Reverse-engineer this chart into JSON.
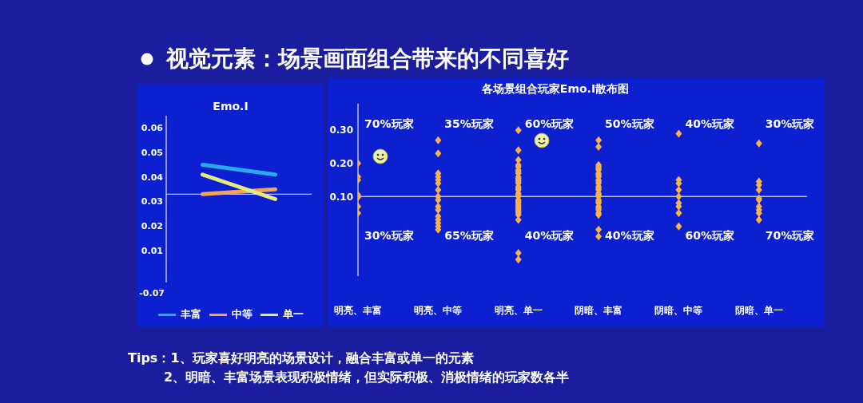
{
  "chart_data": [
    {
      "type": "other",
      "title": "视觉元素：场景画面组合带来的不同喜好"
    },
    {
      "type": "line",
      "title": "Emo.I",
      "categories": [
        null,
        null
      ],
      "series": [
        {
          "name": "丰富",
          "color": "#27a9ef",
          "values": [
            0.045,
            0.041
          ]
        },
        {
          "name": "中等",
          "color": "#f7a35c",
          "values": [
            0.033,
            0.035
          ]
        },
        {
          "name": "单一",
          "color": "#e3ee7a",
          "values": [
            0.041,
            0.031
          ]
        }
      ],
      "ylim": [
        -0.003,
        0.065
      ],
      "yticks": [
        0.01,
        0.02,
        0.03,
        0.04,
        0.05,
        0.06
      ],
      "tick_labels": "y",
      "marker": "none",
      "legend": "bottom",
      "ref_lines": [
        {
          "axis": "y",
          "value": 0.033,
          "color": "#b9c3ff"
        }
      ],
      "annotations": [
        "-0.07"
      ]
    },
    {
      "type": "scatter",
      "title": "各场景组合玩家Emo.I散布图",
      "categories": [
        "明亮、丰富",
        "明亮、中等",
        "明亮、单一",
        "阴暗、丰富",
        "阴暗、中等",
        "阴暗、单一"
      ],
      "series": [
        {
          "color": "#f8b24a",
          "x": [
            "明亮、丰富",
            "明亮、丰富",
            "明亮、丰富",
            "明亮、丰富",
            "明亮、丰富",
            "明亮、丰富",
            "明亮、丰富",
            "明亮、中等",
            "明亮、中等",
            "明亮、中等",
            "明亮、中等",
            "明亮、中等",
            "明亮、中等",
            "明亮、中等",
            "明亮、中等",
            "明亮、中等",
            "明亮、中等",
            "明亮、中等",
            "明亮、中等",
            "明亮、中等",
            "明亮、中等",
            "明亮、中等",
            "明亮、中等",
            "明亮、单一",
            "明亮、单一",
            "明亮、单一",
            "明亮、单一",
            "明亮、单一",
            "明亮、单一",
            "明亮、单一",
            "明亮、单一",
            "明亮、单一",
            "明亮、单一",
            "明亮、单一",
            "明亮、单一",
            "明亮、单一",
            "明亮、单一",
            "明亮、单一",
            "明亮、单一",
            "明亮、单一",
            "明亮、单一",
            "明亮、单一",
            "明亮、单一",
            "明亮、单一",
            "明亮、单一",
            "明亮、单一",
            "明亮、单一",
            "明亮、单一",
            "明亮、单一",
            "明亮、单一",
            "明亮、单一",
            "明亮、单一",
            "明亮、单一",
            "明亮、单一",
            "明亮、单一",
            "阴暗、丰富",
            "阴暗、丰富",
            "阴暗、丰富",
            "阴暗、丰富",
            "阴暗、丰富",
            "阴暗、丰富",
            "阴暗、丰富",
            "阴暗、丰富",
            "阴暗、丰富",
            "阴暗、丰富",
            "阴暗、丰富",
            "阴暗、丰富",
            "阴暗、丰富",
            "阴暗、丰富",
            "阴暗、丰富",
            "阴暗、丰富",
            "阴暗、丰富",
            "阴暗、丰富",
            "阴暗、丰富",
            "阴暗、丰富",
            "阴暗、丰富",
            "阴暗、丰富",
            "阴暗、丰富",
            "阴暗、丰富",
            "阴暗、丰富",
            "阴暗、丰富",
            "阴暗、丰富",
            "阴暗、丰富",
            "阴暗、中等",
            "阴暗、中等",
            "阴暗、中等",
            "阴暗、中等",
            "阴暗、中等",
            "阴暗、中等",
            "阴暗、中等",
            "阴暗、中等",
            "阴暗、中等",
            "阴暗、单一",
            "阴暗、单一",
            "阴暗、单一",
            "阴暗、单一",
            "阴暗、单一",
            "阴暗、单一",
            "阴暗、单一",
            "阴暗、单一",
            "阴暗、单一",
            "阴暗、单一"
          ],
          "values": [
            0.2,
            0.16,
            0.15,
            0.105,
            0.098,
            0.07,
            0.05,
            0.27,
            0.23,
            0.17,
            0.16,
            0.15,
            0.14,
            0.12,
            0.1,
            0.09,
            0.07,
            0.06,
            0.04,
            0.03,
            0.02,
            0.01,
            0.0,
            0.3,
            0.24,
            0.21,
            0.195,
            0.19,
            0.18,
            0.175,
            0.17,
            0.16,
            0.155,
            0.15,
            0.145,
            0.14,
            0.13,
            0.125,
            0.12,
            0.11,
            0.105,
            0.1,
            0.09,
            0.085,
            0.08,
            0.075,
            0.07,
            0.065,
            0.06,
            0.055,
            0.05,
            0.045,
            0.03,
            -0.07,
            -0.09,
            0.27,
            0.25,
            0.195,
            0.19,
            0.185,
            0.18,
            0.17,
            0.165,
            0.16,
            0.15,
            0.145,
            0.14,
            0.13,
            0.125,
            0.12,
            0.11,
            0.105,
            0.1,
            0.09,
            0.085,
            0.08,
            0.07,
            0.065,
            0.06,
            0.05,
            0.045,
            0.0,
            -0.02,
            0.29,
            0.15,
            0.14,
            0.12,
            0.1,
            0.08,
            0.07,
            0.05,
            0.01,
            0.26,
            0.145,
            0.135,
            0.12,
            0.095,
            0.09,
            0.07,
            0.06,
            0.05,
            0.03
          ]
        }
      ],
      "ylim": [
        -0.14,
        0.38
      ],
      "yticks": [
        {
          "value": 0.1,
          "label": "0.10"
        },
        {
          "value": 0.2,
          "label": "0.20"
        },
        {
          "value": 0.3,
          "label": "0.30"
        }
      ],
      "marker": "diamond",
      "ref_lines": [
        {
          "axis": "y",
          "value": 0.1,
          "color": "#b9c3ff"
        }
      ],
      "annotations": [
        "70%玩家",
        "35%玩家",
        "60%玩家",
        "50%玩家",
        "40%玩家",
        "30%玩家",
        "30%玩家",
        "65%玩家",
        "40%玩家",
        "40%玩家",
        "60%玩家",
        "70%玩家"
      ]
    },
    {
      "type": "other",
      "annotations": [
        "Tips：1、玩家喜好明亮的场景设计，融合丰富或单一的元素",
        "2、明暗、丰富场景表现积极情绪，但实际积极、消极情绪的玩家数各半"
      ]
    }
  ]
}
